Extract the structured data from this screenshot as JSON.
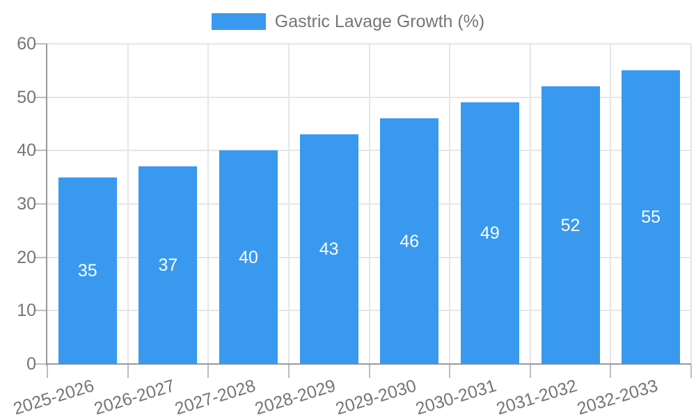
{
  "chart_data": {
    "type": "bar",
    "title": "Gastric Lavage Growth (%)",
    "legend": "Gastric Lavage Growth (%)",
    "legend_position": "top-center",
    "categories": [
      "2025-2026",
      "2026-2027",
      "2027-2028",
      "2028-2029",
      "2029-2030",
      "2030-2031",
      "2031-2032",
      "2032-2033"
    ],
    "values": [
      35,
      37,
      40,
      43,
      46,
      49,
      52,
      55
    ],
    "xlabel": "",
    "ylabel": "",
    "ylim": [
      0,
      60
    ],
    "yticks": [
      0,
      10,
      20,
      30,
      40,
      50,
      60
    ],
    "grid": "on",
    "bar_labels_inside": true,
    "colors": {
      "bar": "#3999EE",
      "axis_text": "#757575",
      "bar_label_text": "#FFFFFF",
      "grid_line": "#E6E6E6",
      "axis_line": "#999999",
      "tick_line": "#BDBDBD",
      "background": "#FFFFFF"
    }
  }
}
